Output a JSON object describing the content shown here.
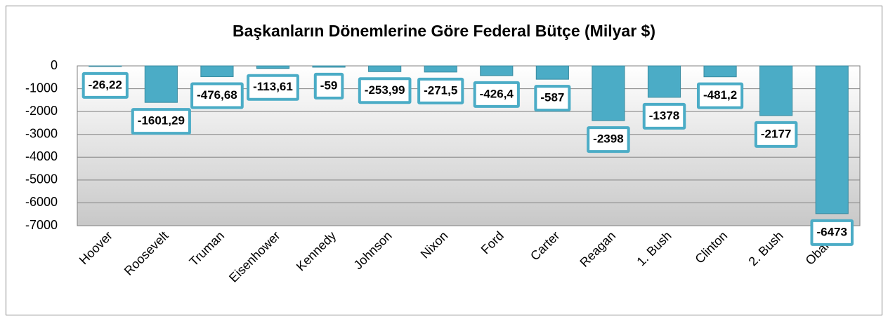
{
  "chart_data": {
    "type": "bar",
    "title": "Başkanların Dönemlerine Göre Federal Bütçe (Milyar $)",
    "categories": [
      "Hoover",
      "Roosevelt",
      "Truman",
      "Eisenhower",
      "Kennedy",
      "Johnson",
      "Nixon",
      "Ford",
      "Carter",
      "Reagan",
      "1. Bush",
      "Clinton",
      "2. Bush",
      "Obama"
    ],
    "values": [
      -26.22,
      -1601.29,
      -476.68,
      -113.61,
      -59,
      -253.99,
      -271.5,
      -426.4,
      -587,
      -2398,
      -1378,
      -481.2,
      -2177,
      -6473
    ],
    "value_labels": [
      "-26,22",
      "-1601,29",
      "-476,68",
      "-113,61",
      "-59",
      "-253,99",
      "-271,5",
      "-426,4",
      "-587",
      "-2398",
      "-1378",
      "-481,2",
      "-2177",
      "-6473"
    ],
    "color": "#4bacc6",
    "ylim": [
      -7000,
      0
    ],
    "yticks": [
      0,
      -1000,
      -2000,
      -3000,
      -4000,
      -5000,
      -6000,
      -7000
    ],
    "grid": true
  }
}
